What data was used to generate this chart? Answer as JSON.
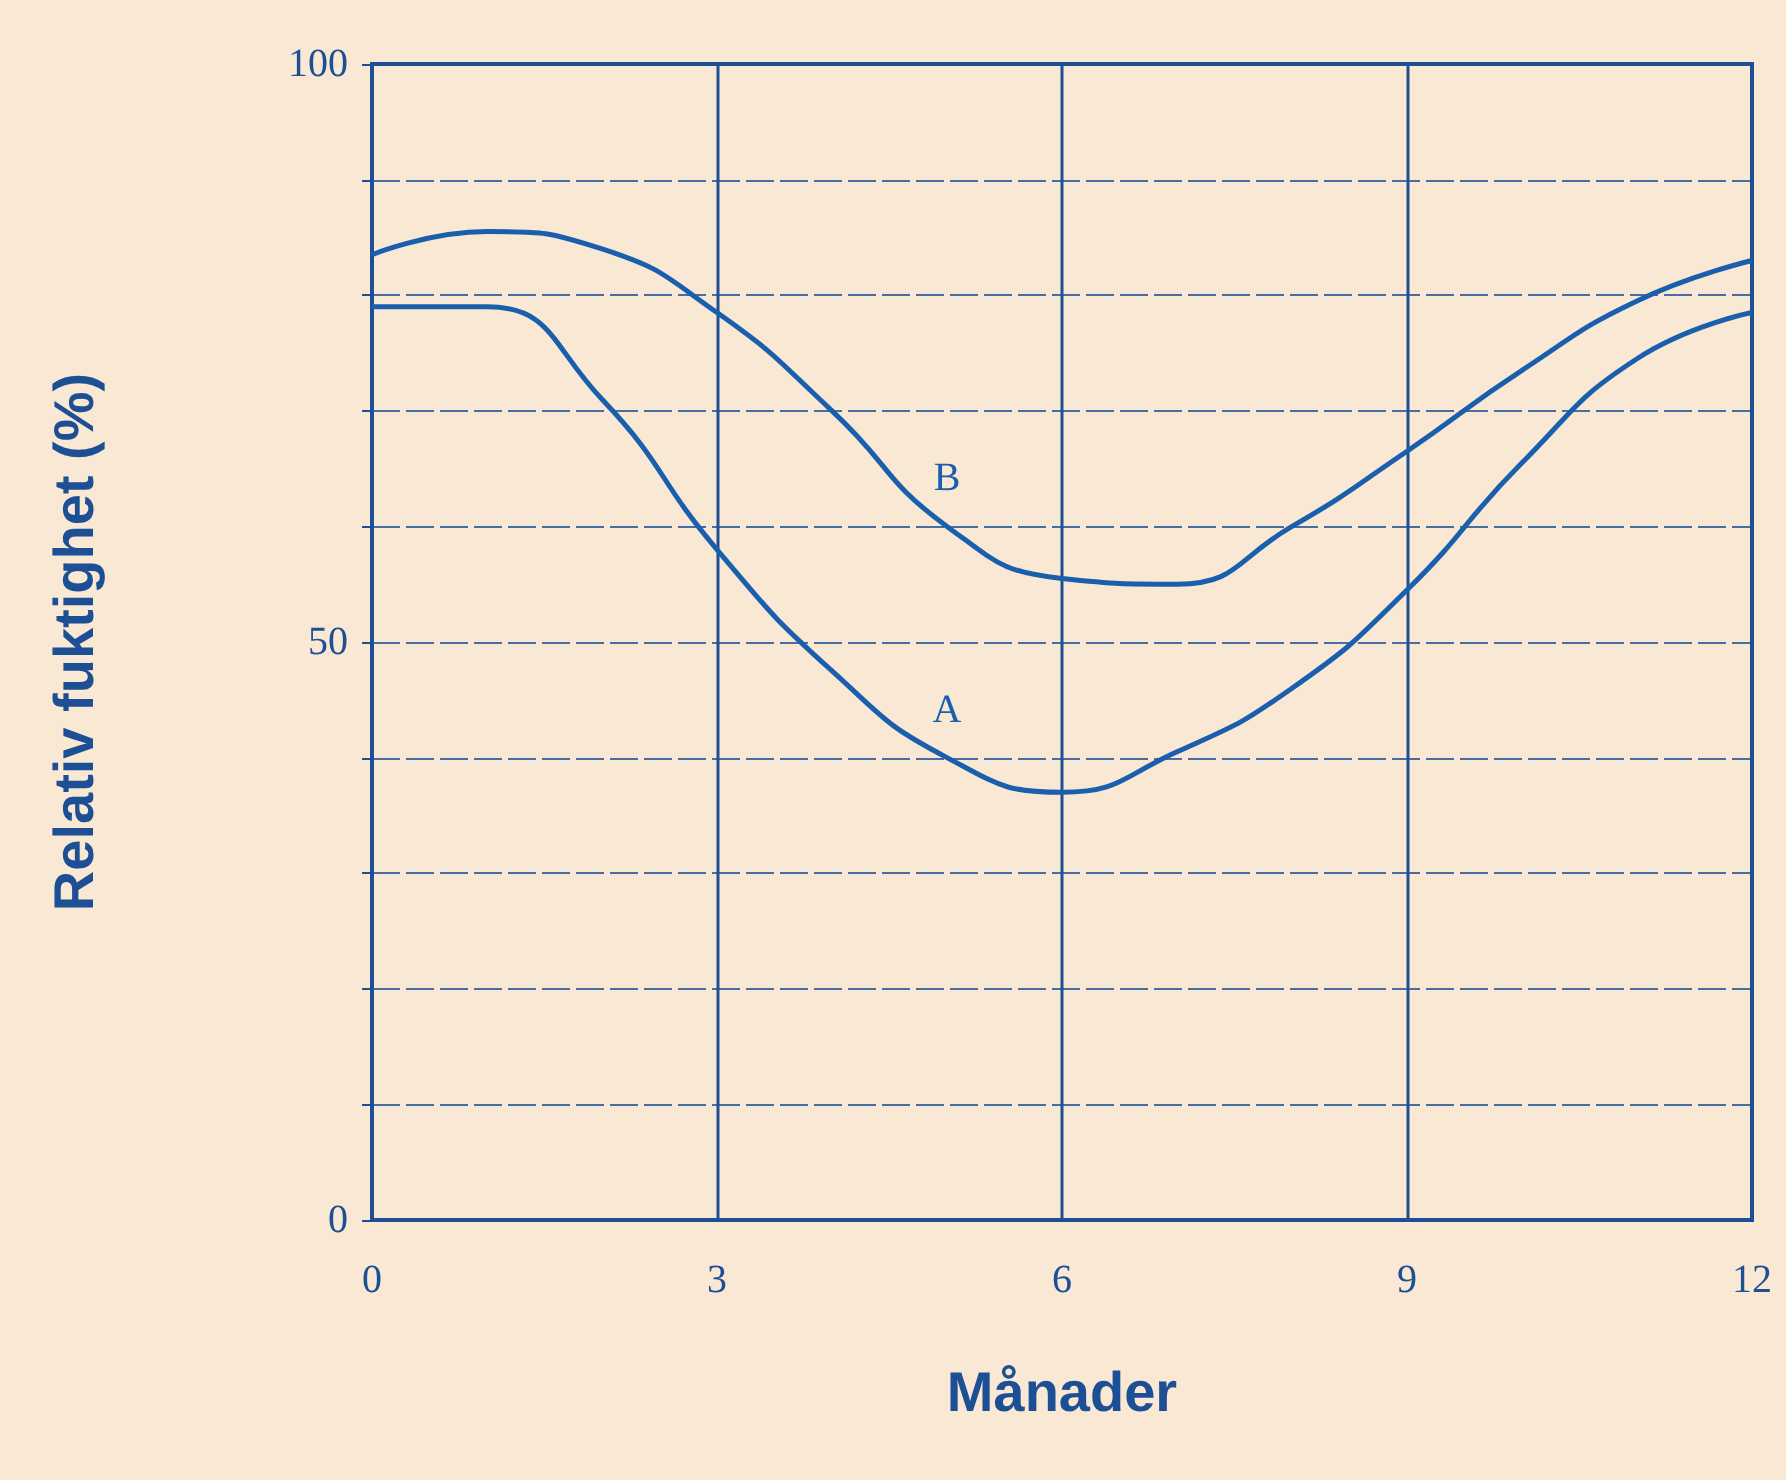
{
  "chart_data": {
    "type": "line",
    "xlabel": "Månader",
    "ylabel": "Relativ fuktighet (%)",
    "x": [
      0,
      1,
      2,
      3,
      4,
      5,
      6,
      7,
      8,
      9,
      10,
      11,
      12
    ],
    "series": [
      {
        "name": "A",
        "color": "#1a5fae",
        "values": [
          79,
          79,
          71,
          58,
          47.5,
          40,
          37,
          40.5,
          46,
          54.5,
          65.5,
          74.5,
          78.5
        ]
      },
      {
        "name": "B",
        "color": "#1a5fae",
        "values": [
          83.5,
          85.5,
          84,
          78.5,
          70,
          60,
          55.5,
          55,
          60,
          66.5,
          73.5,
          79.5,
          83
        ]
      }
    ],
    "xlim": [
      0,
      12
    ],
    "xticks": [
      0,
      3,
      6,
      9,
      12
    ],
    "ylim": [
      0,
      100
    ],
    "yticks": [
      0,
      {
        "value": 10,
        "label": null
      },
      {
        "value": 20,
        "label": null
      },
      {
        "value": 30,
        "label": null
      },
      {
        "value": 40,
        "label": null
      },
      50,
      {
        "value": 60,
        "label": null
      },
      {
        "value": 70,
        "label": null
      },
      {
        "value": 80,
        "label": null
      },
      {
        "value": 90,
        "label": null
      },
      100
    ],
    "grid": true,
    "marker": "none",
    "line_style": "solid",
    "legend": false
  }
}
